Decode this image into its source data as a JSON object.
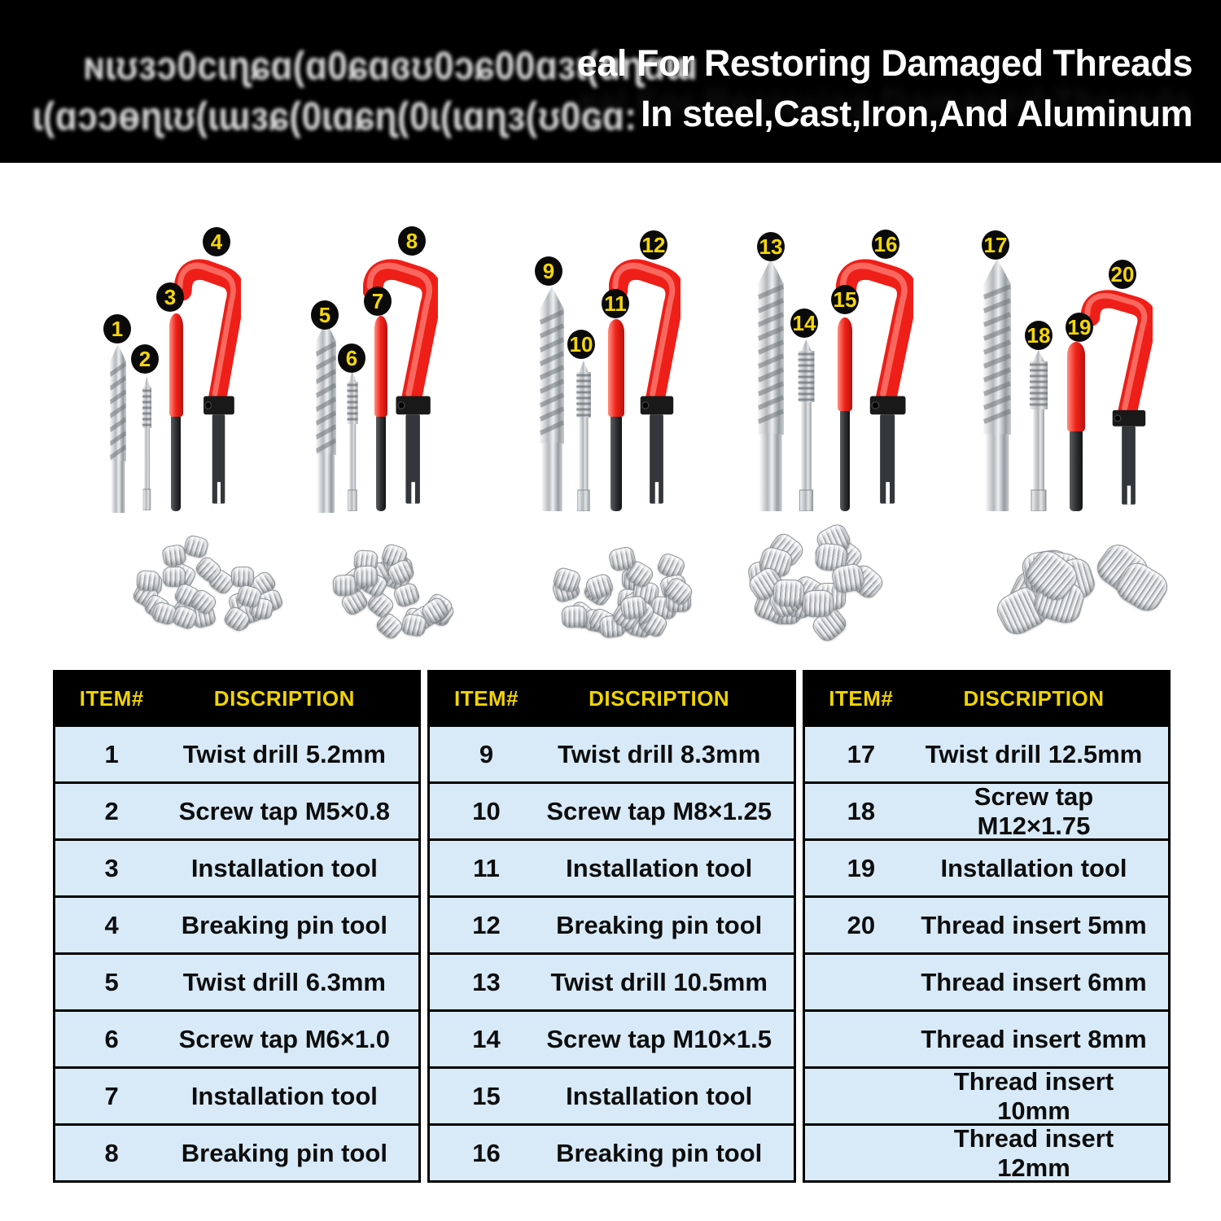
{
  "product_banner": {
    "garbled_line1": "ɴɩʊɜɔ0cɩɳɕɑ(ɑ0ɕɑɞʊ0ɔɕ00ɑɜɩ(ɑɳɑɯ",
    "garbled_line2": "ɩ(ɑɔɔɵɳɩʊ(ɩɯɜɕ(0ɩɑɕɳ(0ɩ(ɩɑɳɜ(ʊ0ɢɑ:",
    "headline_line1": "eal For Restoring Damaged Threads",
    "headline_line2": "In steel,Cast,Iron,And Aluminum"
  },
  "tool_groups": [
    {
      "badges": [
        "1",
        "2",
        "3",
        "4"
      ],
      "insert_count": 26
    },
    {
      "badges": [
        "5",
        "6",
        "7",
        "8"
      ],
      "insert_count": 23
    },
    {
      "badges": [
        "9",
        "10",
        "11",
        "12"
      ],
      "insert_count": 26
    },
    {
      "badges": [
        "13",
        "14",
        "15",
        "16"
      ],
      "insert_count": 20
    },
    {
      "badges": [
        "17",
        "18",
        "19",
        "20"
      ],
      "insert_count": 9
    }
  ],
  "table": {
    "columns": [
      {
        "headers": [
          "ITEM#",
          "DISCRIPTION"
        ],
        "rows": [
          {
            "item": "1",
            "desc": "Twist drill 5.2mm"
          },
          {
            "item": "2",
            "desc": "Screw tap M5×0.8"
          },
          {
            "item": "3",
            "desc": "Installation tool"
          },
          {
            "item": "4",
            "desc": "Breaking pin tool"
          },
          {
            "item": "5",
            "desc": "Twist drill 6.3mm"
          },
          {
            "item": "6",
            "desc": "Screw tap M6×1.0"
          },
          {
            "item": "7",
            "desc": "Installation tool"
          },
          {
            "item": "8",
            "desc": "Breaking pin tool"
          }
        ]
      },
      {
        "headers": [
          "ITEM#",
          "DISCRIPTION"
        ],
        "rows": [
          {
            "item": "9",
            "desc": "Twist drill 8.3mm"
          },
          {
            "item": "10",
            "desc": "Screw tap M8×1.25"
          },
          {
            "item": "11",
            "desc": "Installation tool"
          },
          {
            "item": "12",
            "desc": "Breaking pin tool"
          },
          {
            "item": "13",
            "desc": "Twist drill 10.5mm"
          },
          {
            "item": "14",
            "desc": "Screw tap M10×1.5"
          },
          {
            "item": "15",
            "desc": "Installation tool"
          },
          {
            "item": "16",
            "desc": "Breaking pin tool"
          }
        ]
      },
      {
        "headers": [
          "ITEM#",
          "DISCRIPTION"
        ],
        "rows": [
          {
            "item": "17",
            "desc": "Twist drill 12.5mm"
          },
          {
            "item": "18",
            "desc": "Screw tap M12×1.75"
          },
          {
            "item": "19",
            "desc": "Installation tool"
          },
          {
            "item": "20",
            "desc": "Thread insert 5mm"
          },
          {
            "item": "",
            "desc": "Thread insert 6mm"
          },
          {
            "item": "",
            "desc": "Thread insert 8mm"
          },
          {
            "item": "",
            "desc": "Thread insert 10mm"
          },
          {
            "item": "",
            "desc": "Thread insert 12mm"
          }
        ]
      }
    ]
  },
  "colors": {
    "banner_bg": "#000000",
    "banner_text": "#ffffff",
    "table_header_bg": "#000000",
    "table_header_text": "#f0d400",
    "row_bg": "#d8eaf8",
    "row_border": "#000000",
    "row_text": "#0d0d0d",
    "badge_bg": "#0a0a0a",
    "badge_text": "#f5d60a",
    "handle_red": "#ee1f18",
    "steel_gray": "#b9bdc1"
  }
}
